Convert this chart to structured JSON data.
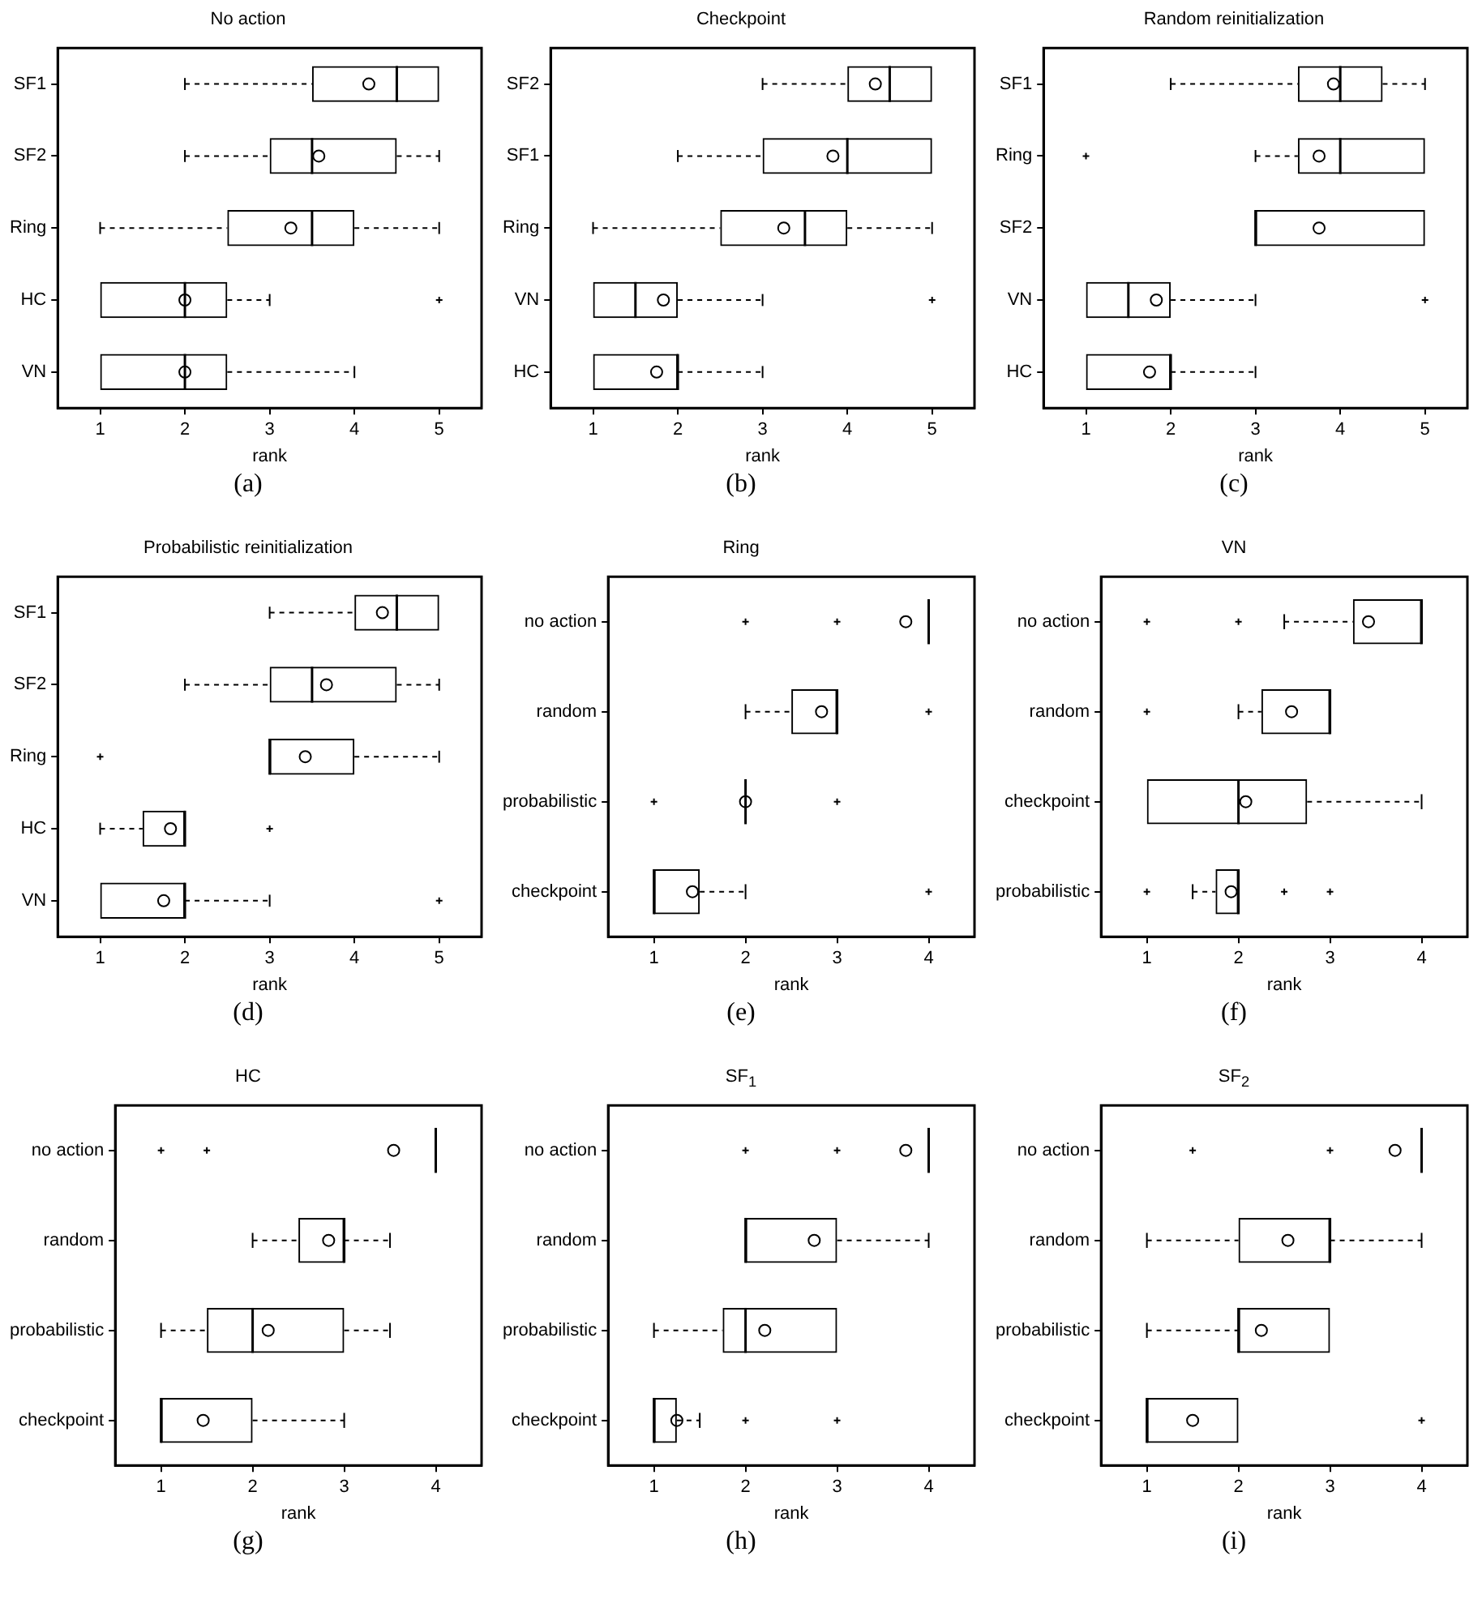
{
  "chart_data": [
    {
      "type": "box",
      "title": "No action",
      "xlabel": "rank",
      "orientation": "horizontal",
      "grid": false,
      "xlim": [
        0.5,
        5.5
      ],
      "xticks": [
        1,
        2,
        3,
        4,
        5
      ],
      "categories": [
        "SF1",
        "SF2",
        "Ring",
        "HC",
        "VN"
      ],
      "annotations": [
        "(a)"
      ],
      "boxes": [
        {
          "low": 2,
          "q1": 3.5,
          "median": 4.5,
          "q3": 5,
          "high": 5,
          "mean": 4.17
        },
        {
          "low": 2,
          "q1": 3,
          "median": 3.5,
          "q3": 4.5,
          "high": 5,
          "mean": 3.58
        },
        {
          "low": 1,
          "q1": 2.5,
          "median": 3.5,
          "q3": 4,
          "high": 5,
          "mean": 3.25
        },
        {
          "low": 1,
          "q1": 1,
          "median": 2,
          "q3": 2.5,
          "high": 3,
          "mean": 2,
          "outliers": [
            5
          ]
        },
        {
          "low": 1,
          "q1": 1,
          "median": 2,
          "q3": 2.5,
          "high": 4,
          "mean": 2
        }
      ]
    },
    {
      "type": "box",
      "title": "Checkpoint",
      "xlabel": "rank",
      "orientation": "horizontal",
      "grid": false,
      "xlim": [
        0.5,
        5.5
      ],
      "xticks": [
        1,
        2,
        3,
        4,
        5
      ],
      "categories": [
        "SF2",
        "SF1",
        "Ring",
        "VN",
        "HC"
      ],
      "annotations": [
        "(b)"
      ],
      "boxes": [
        {
          "low": 3,
          "q1": 4,
          "median": 4.5,
          "q3": 5,
          "high": 5,
          "mean": 4.33
        },
        {
          "low": 2,
          "q1": 3,
          "median": 4,
          "q3": 5,
          "high": 5,
          "mean": 3.83
        },
        {
          "low": 1,
          "q1": 2.5,
          "median": 3.5,
          "q3": 4,
          "high": 5,
          "mean": 3.25
        },
        {
          "low": 1,
          "q1": 1,
          "median": 1.5,
          "q3": 2,
          "high": 3,
          "mean": 1.83,
          "outliers": [
            5
          ]
        },
        {
          "low": 1,
          "q1": 1,
          "median": 2,
          "q3": 2,
          "high": 3,
          "mean": 1.75
        }
      ]
    },
    {
      "type": "box",
      "title": "Random reinitialization",
      "xlabel": "rank",
      "orientation": "horizontal",
      "grid": false,
      "xlim": [
        0.5,
        5.5
      ],
      "xticks": [
        1,
        2,
        3,
        4,
        5
      ],
      "categories": [
        "SF1",
        "Ring",
        "SF2",
        "VN",
        "HC"
      ],
      "annotations": [
        "(c)"
      ],
      "boxes": [
        {
          "low": 2,
          "q1": 3.5,
          "median": 4,
          "q3": 4.5,
          "high": 5,
          "mean": 3.92
        },
        {
          "low": 3,
          "q1": 3.5,
          "median": 4,
          "q3": 5,
          "high": 5,
          "mean": 3.75,
          "outliers": [
            1
          ]
        },
        {
          "low": 3,
          "q1": 3,
          "median": 3,
          "q3": 5,
          "high": 5,
          "mean": 3.75
        },
        {
          "low": 1,
          "q1": 1,
          "median": 1.5,
          "q3": 2,
          "high": 3,
          "mean": 1.83,
          "outliers": [
            5
          ]
        },
        {
          "low": 1,
          "q1": 1,
          "median": 2,
          "q3": 2,
          "high": 3,
          "mean": 1.75
        }
      ]
    },
    {
      "type": "box",
      "title": "Probabilistic reinitialization",
      "xlabel": "rank",
      "orientation": "horizontal",
      "grid": false,
      "xlim": [
        0.5,
        5.5
      ],
      "xticks": [
        1,
        2,
        3,
        4,
        5
      ],
      "categories": [
        "SF1",
        "SF2",
        "Ring",
        "HC",
        "VN"
      ],
      "annotations": [
        "(d)"
      ],
      "boxes": [
        {
          "low": 3,
          "q1": 4,
          "median": 4.5,
          "q3": 5,
          "high": 5,
          "mean": 4.33
        },
        {
          "low": 2,
          "q1": 3,
          "median": 3.5,
          "q3": 4.5,
          "high": 5,
          "mean": 3.67
        },
        {
          "low": 3,
          "q1": 3,
          "median": 3,
          "q3": 4,
          "high": 5,
          "mean": 3.42,
          "outliers": [
            1
          ]
        },
        {
          "low": 1,
          "q1": 1.5,
          "median": 2,
          "q3": 2,
          "high": 2,
          "mean": 1.83,
          "outliers": [
            3
          ]
        },
        {
          "low": 1,
          "q1": 1,
          "median": 2,
          "q3": 2,
          "high": 3,
          "mean": 1.75,
          "outliers": [
            5
          ]
        }
      ]
    },
    {
      "type": "box",
      "title": "Ring",
      "xlabel": "rank",
      "orientation": "horizontal",
      "grid": false,
      "xlim": [
        0.5,
        4.5
      ],
      "xticks": [
        1,
        2,
        3,
        4
      ],
      "categories": [
        "no action",
        "random",
        "probabilistic",
        "checkpoint"
      ],
      "annotations": [
        "(e)"
      ],
      "boxes": [
        {
          "low": 4,
          "q1": 4,
          "median": 4,
          "q3": 4,
          "high": 4,
          "mean": 3.75,
          "outliers": [
            2,
            3
          ]
        },
        {
          "low": 2,
          "q1": 2.5,
          "median": 3,
          "q3": 3,
          "high": 3,
          "mean": 2.83,
          "outliers": [
            4
          ]
        },
        {
          "low": 2,
          "q1": 2,
          "median": 2,
          "q3": 2,
          "high": 2,
          "mean": 2,
          "outliers": [
            1,
            3
          ]
        },
        {
          "low": 1,
          "q1": 1,
          "median": 1,
          "q3": 1.5,
          "high": 2,
          "mean": 1.42,
          "outliers": [
            4
          ]
        }
      ]
    },
    {
      "type": "box",
      "title": "VN",
      "xlabel": "rank",
      "orientation": "horizontal",
      "grid": false,
      "xlim": [
        0.5,
        4.5
      ],
      "xticks": [
        1,
        2,
        3,
        4
      ],
      "categories": [
        "no action",
        "random",
        "checkpoint",
        "probabilistic"
      ],
      "annotations": [
        "(f)"
      ],
      "boxes": [
        {
          "low": 2.5,
          "q1": 3.25,
          "median": 4,
          "q3": 4,
          "high": 4,
          "mean": 3.42,
          "outliers": [
            1,
            2
          ]
        },
        {
          "low": 2,
          "q1": 2.25,
          "median": 3,
          "q3": 3,
          "high": 3,
          "mean": 2.58,
          "outliers": [
            1
          ]
        },
        {
          "low": 1,
          "q1": 1,
          "median": 2,
          "q3": 2.75,
          "high": 4,
          "mean": 2.08
        },
        {
          "low": 1.5,
          "q1": 1.75,
          "median": 2,
          "q3": 2,
          "high": 2,
          "mean": 1.92,
          "outliers": [
            1,
            2.5,
            3
          ]
        }
      ]
    },
    {
      "type": "box",
      "title": "HC",
      "xlabel": "rank",
      "orientation": "horizontal",
      "grid": false,
      "xlim": [
        0.5,
        4.5
      ],
      "xticks": [
        1,
        2,
        3,
        4
      ],
      "categories": [
        "no action",
        "random",
        "probabilistic",
        "checkpoint"
      ],
      "annotations": [
        "(g)"
      ],
      "boxes": [
        {
          "low": 4,
          "q1": 4,
          "median": 4,
          "q3": 4,
          "high": 4,
          "mean": 3.54,
          "outliers": [
            1,
            1.5
          ]
        },
        {
          "low": 2,
          "q1": 2.5,
          "median": 3,
          "q3": 3,
          "high": 3.5,
          "mean": 2.83
        },
        {
          "low": 1,
          "q1": 1.5,
          "median": 2,
          "q3": 3,
          "high": 3.5,
          "mean": 2.17
        },
        {
          "low": 1,
          "q1": 1,
          "median": 1,
          "q3": 2,
          "high": 3,
          "mean": 1.46
        }
      ]
    },
    {
      "type": "box",
      "title": "SF$_{1}$",
      "xlabel": "rank",
      "orientation": "horizontal",
      "grid": false,
      "xlim": [
        0.5,
        4.5
      ],
      "xticks": [
        1,
        2,
        3,
        4
      ],
      "categories": [
        "no action",
        "random",
        "probabilistic",
        "checkpoint"
      ],
      "annotations": [
        "(h)"
      ],
      "boxes": [
        {
          "low": 4,
          "q1": 4,
          "median": 4,
          "q3": 4,
          "high": 4,
          "mean": 3.75,
          "outliers": [
            2,
            3
          ]
        },
        {
          "low": 2,
          "q1": 2,
          "median": 2,
          "q3": 3,
          "high": 4,
          "mean": 2.75
        },
        {
          "low": 1,
          "q1": 1.75,
          "median": 2,
          "q3": 3,
          "high": 3,
          "mean": 2.21
        },
        {
          "low": 1,
          "q1": 1,
          "median": 1,
          "q3": 1.25,
          "high": 1.5,
          "mean": 1.25,
          "outliers": [
            2,
            3
          ]
        }
      ]
    },
    {
      "type": "box",
      "title": "SF$_{2}$",
      "xlabel": "rank",
      "orientation": "horizontal",
      "grid": false,
      "xlim": [
        0.5,
        4.5
      ],
      "xticks": [
        1,
        2,
        3,
        4
      ],
      "categories": [
        "no action",
        "random",
        "probabilistic",
        "checkpoint"
      ],
      "annotations": [
        "(i)"
      ],
      "boxes": [
        {
          "low": 4,
          "q1": 4,
          "median": 4,
          "q3": 4,
          "high": 4,
          "mean": 3.71,
          "outliers": [
            1.5,
            3
          ]
        },
        {
          "low": 1,
          "q1": 2,
          "median": 3,
          "q3": 3,
          "high": 4,
          "mean": 2.54
        },
        {
          "low": 1,
          "q1": 2,
          "median": 2,
          "q3": 3,
          "high": 3,
          "mean": 2.25
        },
        {
          "low": 1,
          "q1": 1,
          "median": 1,
          "q3": 2,
          "high": 2,
          "mean": 1.5,
          "outliers": [
            4
          ]
        }
      ]
    }
  ]
}
